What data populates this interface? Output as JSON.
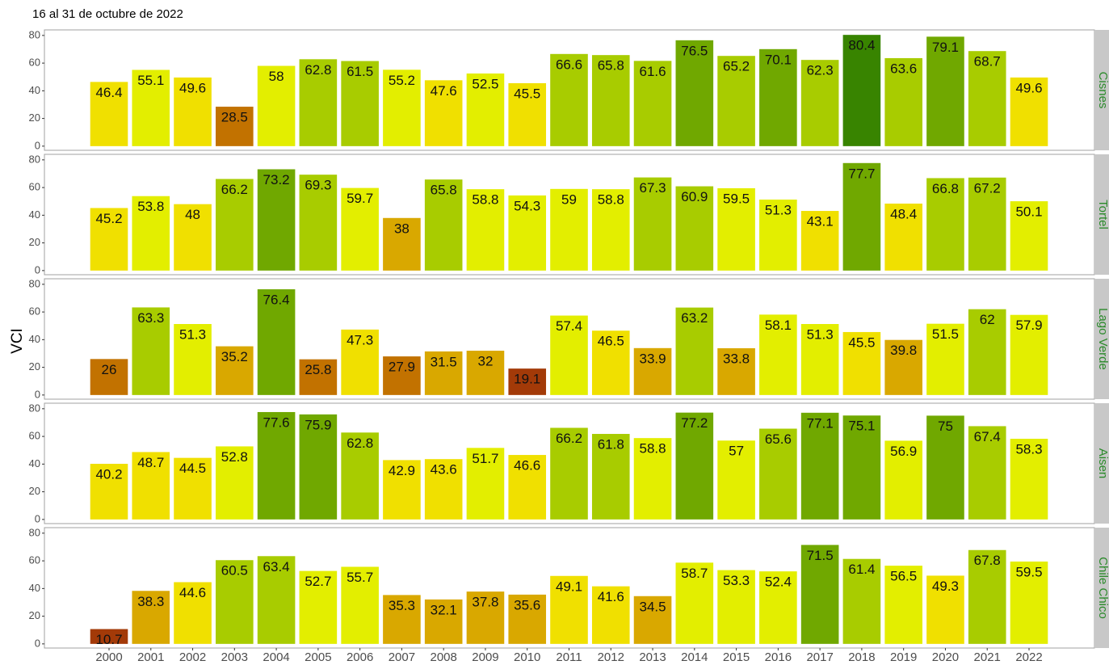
{
  "chart_data": {
    "type": "bar",
    "facets": true,
    "title": "16 al 31 de octubre de 2022",
    "y_label": "VCI",
    "categories": [
      "2000",
      "2001",
      "2002",
      "2003",
      "2004",
      "2005",
      "2006",
      "2007",
      "2008",
      "2009",
      "2010",
      "2011",
      "2012",
      "2013",
      "2014",
      "2015",
      "2016",
      "2017",
      "2018",
      "2019",
      "2020",
      "2021",
      "2022"
    ],
    "ylim": [
      -3,
      84
    ],
    "yticks": [
      0,
      20,
      40,
      60,
      80
    ],
    "series": [
      {
        "name": "Cisnes",
        "values": [
          46.4,
          55.1,
          49.6,
          28.5,
          58,
          62.8,
          61.5,
          55.2,
          47.6,
          52.5,
          45.5,
          66.6,
          65.8,
          61.6,
          76.5,
          65.2,
          70.1,
          62.3,
          80.4,
          63.6,
          79.1,
          68.7,
          49.6
        ],
        "colors": [
          "#f0e000",
          "#e3ee00",
          "#f0e000",
          "#c27200",
          "#e3ee00",
          "#a8cc00",
          "#a8cc00",
          "#e3ee00",
          "#f0e000",
          "#e3ee00",
          "#f0e000",
          "#a8cc00",
          "#a8cc00",
          "#a8cc00",
          "#70a800",
          "#a8cc00",
          "#70a800",
          "#a8cc00",
          "#388400",
          "#a8cc00",
          "#70a800",
          "#a8cc00",
          "#f0e000"
        ]
      },
      {
        "name": "Tortel",
        "values": [
          45.2,
          53.8,
          48,
          66.2,
          73.2,
          69.3,
          59.7,
          38,
          65.8,
          58.8,
          54.3,
          59,
          58.8,
          67.3,
          60.9,
          59.5,
          51.3,
          43.1,
          77.7,
          48.4,
          66.8,
          67.2,
          50.1
        ],
        "colors": [
          "#f0e000",
          "#e3ee00",
          "#f0e000",
          "#a8cc00",
          "#70a800",
          "#a8cc00",
          "#e3ee00",
          "#d9a800",
          "#a8cc00",
          "#e3ee00",
          "#e3ee00",
          "#e3ee00",
          "#e3ee00",
          "#a8cc00",
          "#a8cc00",
          "#e3ee00",
          "#e3ee00",
          "#f0e000",
          "#70a800",
          "#f0e000",
          "#a8cc00",
          "#a8cc00",
          "#e3ee00"
        ]
      },
      {
        "name": "Lago Verde",
        "values": [
          26,
          63.3,
          51.3,
          35.2,
          76.4,
          25.8,
          47.3,
          27.9,
          31.5,
          32,
          19.1,
          57.4,
          46.5,
          33.9,
          63.2,
          33.8,
          58.1,
          51.3,
          45.5,
          39.8,
          51.5,
          62,
          57.9
        ],
        "colors": [
          "#c27200",
          "#a8cc00",
          "#e3ee00",
          "#d9a800",
          "#70a800",
          "#c27200",
          "#f0e000",
          "#c27200",
          "#d9a800",
          "#d9a800",
          "#a33a08",
          "#e3ee00",
          "#f0e000",
          "#d9a800",
          "#a8cc00",
          "#d9a800",
          "#e3ee00",
          "#e3ee00",
          "#f0e000",
          "#d9a800",
          "#e3ee00",
          "#a8cc00",
          "#e3ee00"
        ]
      },
      {
        "name": "Aisen",
        "values": [
          40.2,
          48.7,
          44.5,
          52.8,
          77.6,
          75.9,
          62.8,
          42.9,
          43.6,
          51.7,
          46.6,
          66.2,
          61.8,
          58.8,
          77.2,
          57,
          65.6,
          77.1,
          75.1,
          56.9,
          75,
          67.4,
          58.3
        ],
        "colors": [
          "#f0e000",
          "#f0e000",
          "#f0e000",
          "#e3ee00",
          "#70a800",
          "#70a800",
          "#a8cc00",
          "#f0e000",
          "#f0e000",
          "#e3ee00",
          "#f0e000",
          "#a8cc00",
          "#a8cc00",
          "#e3ee00",
          "#70a800",
          "#e3ee00",
          "#a8cc00",
          "#70a800",
          "#70a800",
          "#e3ee00",
          "#70a800",
          "#a8cc00",
          "#e3ee00"
        ]
      },
      {
        "name": "Chile Chico",
        "values": [
          10.7,
          38.3,
          44.6,
          60.5,
          63.4,
          52.7,
          55.7,
          35.3,
          32.1,
          37.8,
          35.6,
          49.1,
          41.6,
          34.5,
          58.7,
          53.3,
          52.4,
          71.5,
          61.4,
          56.5,
          49.3,
          67.8,
          59.5
        ],
        "colors": [
          "#a33a08",
          "#d9a800",
          "#f0e000",
          "#a8cc00",
          "#a8cc00",
          "#e3ee00",
          "#e3ee00",
          "#d9a800",
          "#d9a800",
          "#d9a800",
          "#d9a800",
          "#f0e000",
          "#f0e000",
          "#d9a800",
          "#e3ee00",
          "#e3ee00",
          "#e3ee00",
          "#70a800",
          "#a8cc00",
          "#e3ee00",
          "#f0e000",
          "#a8cc00",
          "#e3ee00"
        ]
      }
    ]
  }
}
